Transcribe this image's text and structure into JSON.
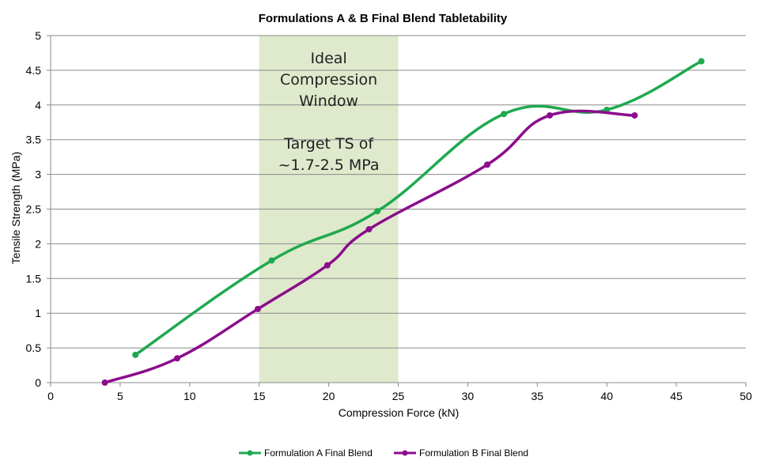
{
  "chart_data": {
    "type": "line",
    "title": "Formulations A & B Final Blend Tabletability",
    "xlabel": "Compression Force (kN)",
    "ylabel": "Tensile Strength (MPa)",
    "xlim": [
      0,
      50
    ],
    "ylim": [
      0,
      5
    ],
    "x_ticks": [
      "0",
      "5",
      "10",
      "15",
      "20",
      "25",
      "30",
      "35",
      "40",
      "45",
      "50"
    ],
    "y_ticks": [
      "0",
      "0.5",
      "1",
      "1.5",
      "2",
      "2.5",
      "3",
      "3.5",
      "4",
      "4.5",
      "5"
    ],
    "grid": true,
    "legend_position": "bottom",
    "shaded_region": {
      "x_range": [
        15,
        25
      ],
      "color": "#dfe9cc",
      "text_lines": [
        "Ideal",
        "Compression",
        "Window",
        "",
        "Target TS of",
        "~1.7-2.5 MPa"
      ]
    },
    "series": [
      {
        "name": "Formulation A Final Blend",
        "color": "#1fa94f",
        "x": [
          6.1,
          15.9,
          23.5,
          32.6,
          40.0,
          46.8
        ],
        "y": [
          0.4,
          1.76,
          2.47,
          3.87,
          3.93,
          4.63
        ]
      },
      {
        "name": "Formulation B Final Blend",
        "color": "#8b0d8b",
        "x": [
          3.9,
          9.1,
          14.9,
          19.9,
          22.9,
          31.4,
          35.9,
          42.0
        ],
        "y": [
          0.0,
          0.35,
          1.06,
          1.69,
          2.21,
          3.14,
          3.85,
          3.85
        ]
      }
    ]
  }
}
